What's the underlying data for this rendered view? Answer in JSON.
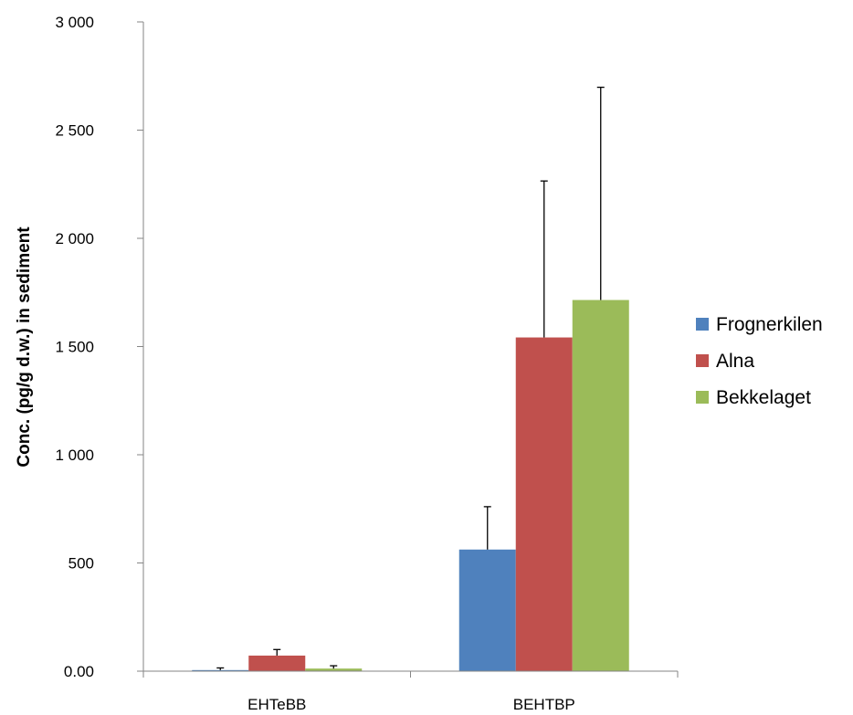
{
  "chart_data": {
    "type": "bar",
    "title": "",
    "xlabel": "",
    "ylabel": "Conc. (pg/g d.w.) in sediment",
    "ylim": [
      0,
      3000
    ],
    "yticks": [
      0,
      500,
      1000,
      1500,
      2000,
      2500,
      3000
    ],
    "ytick_labels": [
      "0.00",
      "500",
      "1 000",
      "1 500",
      "2 000",
      "2 500",
      "3 000"
    ],
    "grid": false,
    "legend_position": "right",
    "categories": [
      "EHTeBB",
      "BEHTBP"
    ],
    "series": [
      {
        "name": "Frognerkilen",
        "color": "#4F81BD",
        "values": [
          5,
          562
        ],
        "error_upper": [
          15,
          760
        ]
      },
      {
        "name": "Alna",
        "color": "#C0504D",
        "values": [
          72,
          1542
        ],
        "error_upper": [
          100,
          2265
        ]
      },
      {
        "name": "Bekkelaget",
        "color": "#9BBB59",
        "values": [
          12,
          1715
        ],
        "error_upper": [
          25,
          2698
        ]
      }
    ]
  }
}
